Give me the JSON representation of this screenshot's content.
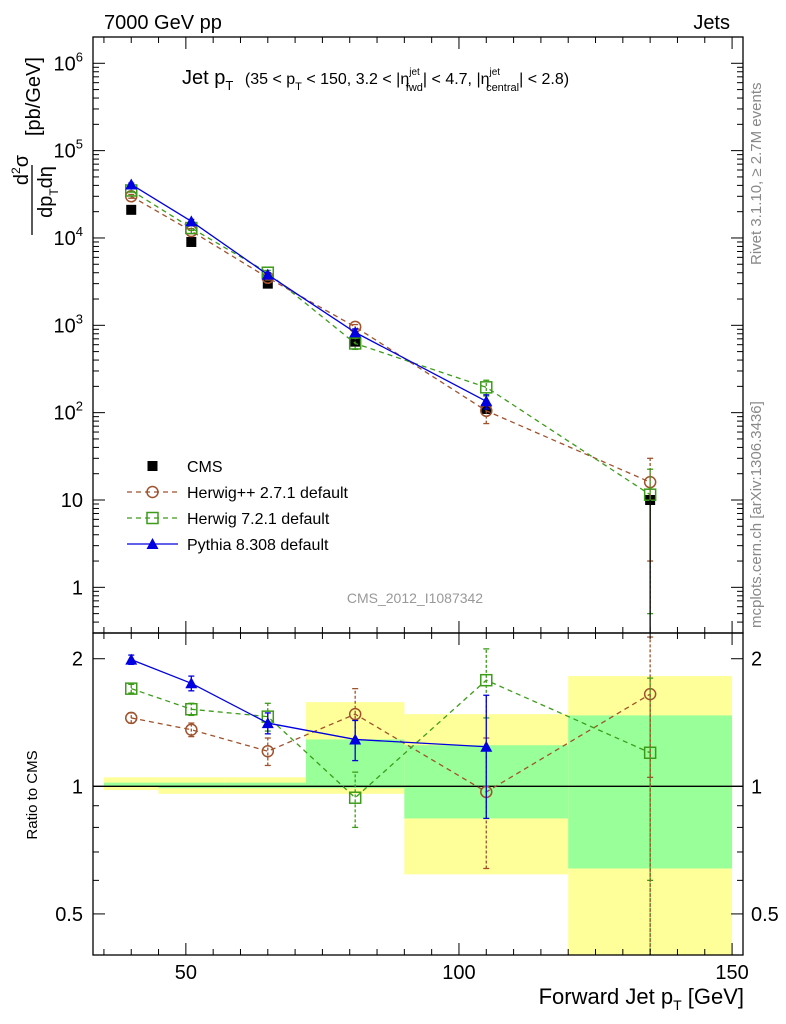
{
  "header": {
    "energy_label": "7000 GeV pp",
    "process_label": "Jets"
  },
  "side_labels": {
    "rivet": "Rivet 3.1.10, ≥ 2.7M events",
    "mcplots": "mcplots.cern.ch [arXiv:1306.3436]"
  },
  "colors": {
    "cms": "#000000",
    "herwigpp": "#a0522d",
    "herwig7": "#3c9c1a",
    "pythia": "#0000e0",
    "band_yellow": "#ffff99",
    "band_green": "#99ff99"
  },
  "chart_data": [
    {
      "type": "scatter",
      "panel": "main",
      "title_main": "Jet p",
      "title_sub": "T",
      "title_cut_open": "(35 < p",
      "title_cut_mid1": " < 150, 3.2 < |η",
      "title_cut_mid2": "| < 4.7, |η",
      "title_cut_close": "| < 2.8)",
      "title_sup_jet": "jet",
      "title_sub_fwd": "fwd",
      "title_sub_central": "central",
      "ylabel": "d²σ / dp_T dη [pb/GeV]",
      "xlabel": "Forward Jet p_T [GeV]",
      "xlim": [
        33,
        152
      ],
      "ylim": [
        0.3,
        2000000
      ],
      "ylog": true,
      "yticks": [
        {
          "value": 1,
          "label": "1"
        },
        {
          "value": 10,
          "label": "10"
        },
        {
          "value": 100,
          "label": "10^2"
        },
        {
          "value": 1000,
          "label": "10^3"
        },
        {
          "value": 10000,
          "label": "10^4"
        },
        {
          "value": 100000,
          "label": "10^5"
        },
        {
          "value": 1000000,
          "label": "10^6"
        }
      ],
      "legend_position": "lower-left",
      "watermark": "CMS_2012_I1087342",
      "series": [
        {
          "name": "CMS",
          "style": "filled-square",
          "color_key": "cms",
          "line": "none",
          "x": [
            40,
            51,
            65,
            81,
            105,
            135
          ],
          "y": [
            21000,
            9000,
            3000,
            650,
            110,
            10
          ],
          "yerr": [
            0,
            0,
            0,
            0,
            0,
            0
          ]
        },
        {
          "name": "Herwig++ 2.7.1 default",
          "style": "open-circle",
          "color_key": "herwigpp",
          "line": "dashed",
          "x": [
            40,
            51,
            65,
            81,
            105,
            135
          ],
          "y": [
            30000,
            12000,
            3500,
            960,
            105,
            16
          ],
          "yerr": [
            1500,
            800,
            200,
            60,
            30,
            14
          ]
        },
        {
          "name": "Herwig 7.2.1 default",
          "style": "open-square",
          "color_key": "herwig7",
          "line": "dashed",
          "x": [
            40,
            51,
            65,
            81,
            105,
            135
          ],
          "y": [
            35000,
            13000,
            4000,
            620,
            195,
            11.5
          ],
          "yerr": [
            1500,
            800,
            250,
            90,
            40,
            11
          ]
        },
        {
          "name": "Pythia 8.308 default",
          "style": "filled-triangle",
          "color_key": "pythia",
          "line": "solid",
          "x": [
            40,
            51,
            65,
            81,
            105,
            135
          ],
          "y": [
            41000,
            15500,
            3800,
            830,
            135,
            0
          ],
          "yerr": [
            1500,
            800,
            200,
            80,
            25,
            0
          ]
        }
      ]
    },
    {
      "type": "scatter",
      "panel": "ratio",
      "ylabel": "Ratio to CMS",
      "xlim": [
        33,
        152
      ],
      "ylim": [
        0.4,
        2.3
      ],
      "ylog": true,
      "reference_line": 1,
      "xticks": [
        {
          "value": 50,
          "label": "50"
        },
        {
          "value": 100,
          "label": "100"
        },
        {
          "value": 150,
          "label": "150"
        }
      ],
      "yticks": [
        {
          "value": 0.5,
          "label": "0.5"
        },
        {
          "value": 1,
          "label": "1"
        },
        {
          "value": 2,
          "label": "2"
        }
      ],
      "bands": [
        {
          "x0": 35,
          "x1": 45,
          "y_lo": 0.98,
          "y_hi": 1.05,
          "g_lo": 1.0,
          "g_hi": 1.02
        },
        {
          "x0": 45,
          "x1": 57,
          "y_lo": 0.96,
          "y_hi": 1.05,
          "g_lo": 0.99,
          "g_hi": 1.02
        },
        {
          "x0": 57,
          "x1": 72,
          "y_lo": 0.96,
          "y_hi": 1.05,
          "g_lo": 0.99,
          "g_hi": 1.02
        },
        {
          "x0": 72,
          "x1": 90,
          "y_lo": 0.96,
          "y_hi": 1.58,
          "g_lo": 0.99,
          "g_hi": 1.29
        },
        {
          "x0": 90,
          "x1": 120,
          "y_lo": 0.62,
          "y_hi": 1.48,
          "g_lo": 0.84,
          "g_hi": 1.25
        },
        {
          "x0": 120,
          "x1": 150,
          "y_lo": 0.35,
          "y_hi": 1.82,
          "g_lo": 0.64,
          "g_hi": 1.47
        }
      ],
      "series": [
        {
          "name": "Herwig++ 2.7.1 default",
          "style": "open-circle",
          "color_key": "herwigpp",
          "line": "dashed",
          "x": [
            40,
            51,
            65,
            81,
            105,
            135
          ],
          "y": [
            1.45,
            1.36,
            1.21,
            1.48,
            0.97,
            1.65
          ],
          "yerr": [
            0.04,
            0.05,
            0.09,
            0.22,
            0.33,
            0.6
          ]
        },
        {
          "name": "Herwig 7.2.1 default",
          "style": "open-square",
          "color_key": "herwig7",
          "line": "dashed",
          "x": [
            40,
            51,
            65,
            81,
            105,
            135
          ],
          "y": [
            1.7,
            1.52,
            1.46,
            0.94,
            1.78,
            1.2
          ],
          "yerr": [
            0.04,
            0.05,
            0.11,
            0.14,
            0.33,
            0.6
          ]
        },
        {
          "name": "Pythia 8.308 default",
          "style": "filled-triangle",
          "color_key": "pythia",
          "line": "solid",
          "x": [
            40,
            51,
            65,
            81,
            105
          ],
          "y": [
            1.99,
            1.75,
            1.41,
            1.29,
            1.24
          ],
          "yerr": [
            0.05,
            0.07,
            0.08,
            0.14,
            0.4
          ]
        }
      ]
    }
  ]
}
